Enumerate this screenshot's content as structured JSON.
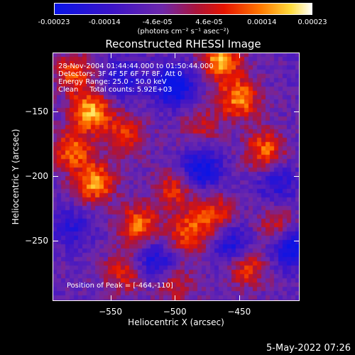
{
  "chart_data": {
    "type": "heatmap",
    "title": "Reconstructed RHESSI Image",
    "xlabel": "Heliocentric X (arcsec)",
    "ylabel": "Heliocentric Y (arcsec)",
    "xlim": [
      -595,
      -403
    ],
    "ylim": [
      -297,
      -104
    ],
    "x_ticks": [
      -550,
      -500,
      -450
    ],
    "y_ticks": [
      -150,
      -200,
      -250
    ],
    "colorbar": {
      "range": [
        -0.00023,
        0.00023
      ],
      "tick_values": [
        -0.00023,
        -0.00014,
        -4.6e-05,
        4.6e-05,
        0.00014,
        0.00023
      ],
      "tick_labels": [
        "-0.00023",
        "-0.00014",
        "-4.6e-05",
        "4.6e-05",
        "0.00014",
        "0.00023"
      ],
      "unit_label": "(photons cm⁻² s⁻¹ asec⁻²)"
    },
    "annotations": {
      "time_range": "28-Nov-2004 01:44:44.000 to 01:50:44.000",
      "detectors": "Detectors: 3F 4F 5F 6F 7F 8F, Att 0",
      "energy": "Energy Range: 25.0 - 50.0 keV",
      "clean": "Clean     Total counts: 5.92E+03",
      "peak": "Position of Peak = [-464,-110]"
    },
    "peak": {
      "x": -464,
      "y": -110
    },
    "hotspots": [
      {
        "x": -578,
        "y": -120,
        "v": 0.00016
      },
      {
        "x": -565,
        "y": -150,
        "v": 0.00023
      },
      {
        "x": -580,
        "y": -180,
        "v": 0.00018
      },
      {
        "x": -562,
        "y": -205,
        "v": 0.00022
      },
      {
        "x": -538,
        "y": -168,
        "v": 0.00015
      },
      {
        "x": -500,
        "y": -210,
        "v": 0.00014
      },
      {
        "x": -490,
        "y": -245,
        "v": 0.00017
      },
      {
        "x": -528,
        "y": -238,
        "v": 0.00019
      },
      {
        "x": -470,
        "y": -230,
        "v": 0.00016
      },
      {
        "x": -464,
        "y": -110,
        "v": 0.00023
      },
      {
        "x": -450,
        "y": -140,
        "v": 0.00021
      },
      {
        "x": -430,
        "y": -180,
        "v": 0.00018
      },
      {
        "x": -445,
        "y": -270,
        "v": 0.00017
      },
      {
        "x": -420,
        "y": -240,
        "v": 0.00012
      },
      {
        "x": -540,
        "y": -275,
        "v": 0.00013
      },
      {
        "x": -500,
        "y": -285,
        "v": 0.00011
      },
      {
        "x": -480,
        "y": -160,
        "v": 0.0001
      }
    ],
    "coldspots": [
      {
        "x": -500,
        "y": -130,
        "v": -0.0002
      },
      {
        "x": -480,
        "y": -195,
        "v": -0.00018
      },
      {
        "x": -455,
        "y": -255,
        "v": -0.00016
      },
      {
        "x": -410,
        "y": -255,
        "v": -0.00019
      },
      {
        "x": -540,
        "y": -125,
        "v": -0.00012
      },
      {
        "x": -515,
        "y": -265,
        "v": -0.00014
      },
      {
        "x": -580,
        "y": -240,
        "v": -0.0001
      },
      {
        "x": -420,
        "y": -205,
        "v": -0.00011
      }
    ]
  },
  "footer": {
    "date": "5-May-2022 07:26"
  }
}
